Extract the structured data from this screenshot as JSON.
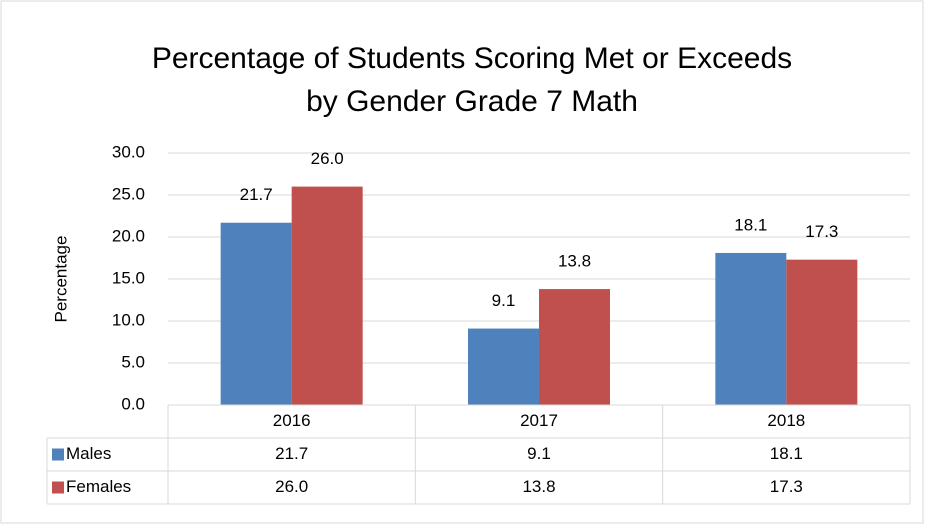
{
  "chart_data": {
    "type": "bar",
    "title": [
      "Percentage of Students Scoring Met or Exceeds",
      "by Gender Grade 7 Math"
    ],
    "y_label": "Percentage",
    "categories": [
      "2016",
      "2017",
      "2018"
    ],
    "series": [
      {
        "name": "Males",
        "color": "#4f81bd",
        "values": [
          21.7,
          9.1,
          18.1
        ],
        "value_labels": [
          "21.7",
          "9.1",
          "18.1"
        ]
      },
      {
        "name": "Females",
        "color": "#c0504d",
        "values": [
          26.0,
          13.8,
          17.3
        ],
        "value_labels": [
          "26.0",
          "13.8",
          "17.3"
        ]
      }
    ],
    "ylim": [
      0,
      30
    ],
    "yticks": [
      {
        "value": 0,
        "label": "0.0"
      },
      {
        "value": 5,
        "label": "5.0"
      },
      {
        "value": 10,
        "label": "10.0"
      },
      {
        "value": 15,
        "label": "15.0"
      },
      {
        "value": 20,
        "label": "20.0"
      },
      {
        "value": 25,
        "label": "25.0"
      },
      {
        "value": 30,
        "label": "30.0"
      }
    ],
    "grid": true,
    "data_table": true
  }
}
